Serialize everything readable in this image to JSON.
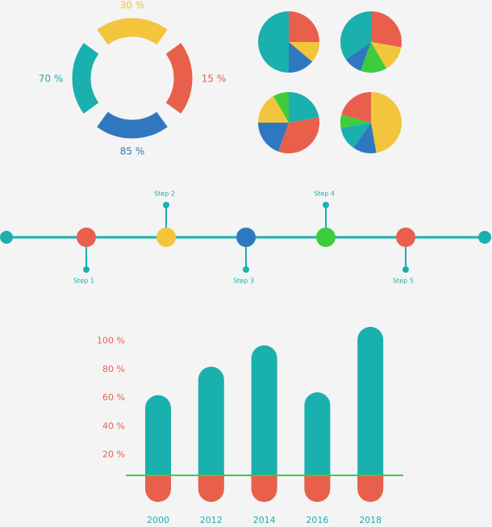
{
  "ring": {
    "labels": [
      "30 %",
      "15 %",
      "85 %",
      "70 %"
    ]
  },
  "timeline": {
    "steps": [
      "Step 1",
      "Step 2",
      "Step 3",
      "Step 4",
      "Step 5"
    ]
  },
  "chart_data": {
    "type": "bar",
    "categories": [
      "2000",
      "2012",
      "2014",
      "2016",
      "2018"
    ],
    "values": [
      62,
      82,
      97,
      64,
      110
    ],
    "color": "#19b0ad",
    "ylim": [
      0,
      110
    ],
    "yticks": [
      {
        "value": 20,
        "label": "20 %"
      },
      {
        "value": 40,
        "label": "40 %"
      },
      {
        "value": 60,
        "label": "60 %"
      },
      {
        "value": 80,
        "label": "80 %"
      },
      {
        "value": 100,
        "label": "100 %"
      }
    ]
  }
}
